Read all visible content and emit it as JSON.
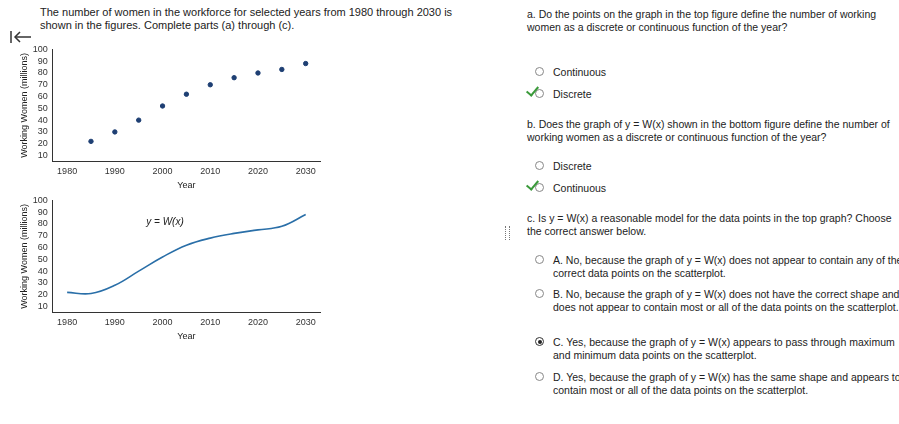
{
  "header": {
    "text": "The number of women in the workforce for selected years from 1980 through 2030 is shown in the figures. Complete parts (a) through (c)."
  },
  "chart_data": [
    {
      "type": "scatter",
      "x_label": "Year",
      "y_label": "Working Women (millions)",
      "x": [
        1985,
        1990,
        1995,
        2000,
        2005,
        2010,
        2015,
        2020,
        2025,
        2030
      ],
      "series": [
        {
          "color": "#1e3f73",
          "marker": "circle",
          "values": [
            22,
            30,
            40,
            52,
            62,
            70,
            76,
            80,
            83,
            88
          ]
        }
      ],
      "xlim": [
        1977,
        2033
      ],
      "xticks": [
        1980,
        1990,
        2000,
        2010,
        2020,
        2030
      ],
      "ylim": [
        5,
        100
      ],
      "yticks": [
        10,
        20,
        30,
        40,
        50,
        60,
        70,
        80,
        90,
        100
      ],
      "grid": false
    },
    {
      "type": "line",
      "x_label": "Year",
      "y_label": "Working Women (millions)",
      "annotation": "y = W(x)",
      "x": [
        1980,
        1985,
        1990,
        1995,
        2000,
        2005,
        2010,
        2015,
        2020,
        2025,
        2030
      ],
      "series": [
        {
          "color": "#2a6fa8",
          "line_style": "solid",
          "values": [
            22,
            21,
            28,
            40,
            52,
            62,
            68,
            72,
            75,
            78,
            88
          ]
        }
      ],
      "xlim": [
        1977,
        2033
      ],
      "xticks": [
        1980,
        1990,
        2000,
        2010,
        2020,
        2030
      ],
      "ylim": [
        5,
        100
      ],
      "yticks": [
        10,
        20,
        30,
        40,
        50,
        60,
        70,
        80,
        90,
        100
      ],
      "grid": false
    }
  ],
  "questions": [
    {
      "text": "a. Do the points on the graph in the top figure define the number of working women as a discrete or continuous function of the year?",
      "options": [
        {
          "text": "Continuous",
          "selected": false,
          "correct": false
        },
        {
          "text": "Discrete",
          "selected": true,
          "correct": true
        }
      ]
    },
    {
      "text": "b. Does the graph of y = W(x) shown in the bottom figure define the number of working women as a discrete or continuous function of the year?",
      "options": [
        {
          "text": "Discrete",
          "selected": false,
          "correct": false
        },
        {
          "text": "Continuous",
          "selected": true,
          "correct": true
        }
      ]
    },
    {
      "text": "c. Is y = W(x) a reasonable model for the data points in the top graph? Choose the correct answer below.",
      "options": [
        {
          "text": "A.  No, because the graph of y = W(x) does not appear to contain any of the correct data points on the scatterplot.",
          "selected": false,
          "correct": false
        },
        {
          "text": "B.  No, because the graph of y = W(x) does not have the correct shape and does not appear to contain most or all of the data points on the scatterplot.",
          "selected": false,
          "correct": false
        },
        {
          "text": "C.  Yes, because the graph of y = W(x) appears to pass through maximum and minimum data points on the scatterplot.",
          "selected": true,
          "correct": false
        },
        {
          "text": "D.  Yes, because the graph of y = W(x) has the same shape and appears to contain most or all of the data points on the scatterplot.",
          "selected": false,
          "correct": false
        }
      ]
    }
  ]
}
